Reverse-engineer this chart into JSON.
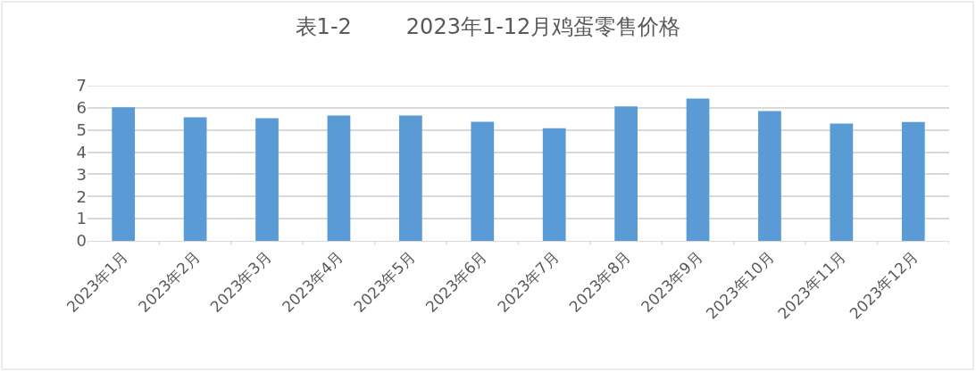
{
  "chart_data": {
    "type": "bar",
    "title": "表1-2        2023年1-12月鸡蛋零售价格",
    "categories": [
      "2023年1月",
      "2023年2月",
      "2023年3月",
      "2023年4月",
      "2023年5月",
      "2023年6月",
      "2023年7月",
      "2023年8月",
      "2023年9月",
      "2023年10月",
      "2023年11月",
      "2023年12月"
    ],
    "values": [
      6.02,
      5.57,
      5.53,
      5.65,
      5.65,
      5.37,
      5.08,
      6.06,
      6.42,
      5.85,
      5.29,
      5.36
    ],
    "color": "#5b9bd5",
    "ylim": [
      0,
      7
    ],
    "yticks": [
      0,
      1,
      2,
      3,
      4,
      5,
      6,
      7
    ],
    "grid": "y"
  }
}
